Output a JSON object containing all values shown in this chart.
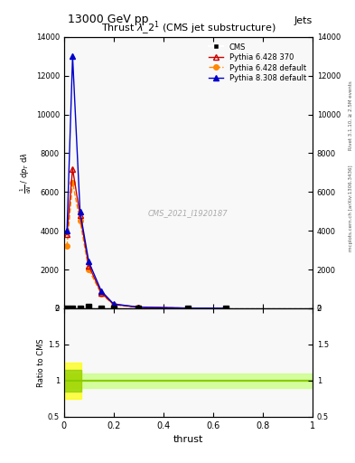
{
  "title": "13000 GeV pp",
  "top_right_label": "Jets",
  "plot_title": "Thrust $\\lambda\\_2^1$ (CMS jet substructure)",
  "watermark": "CMS_2021_I1920187",
  "right_label_top": "Rivet 3.1.10, ≥ 2.5M events",
  "right_label_bottom": "mcplots.cern.ch [arXiv:1306.3436]",
  "xlabel": "thrust",
  "ylabel": "$\\frac{1}{\\mathrm{d}N}$ / $\\mathrm{d}\\sigma$ $\\mathrm{d}p_T$ $\\mathrm{d}\\lambda$",
  "ylabel2": "Ratio to CMS",
  "cms_x": [
    0.0125,
    0.035,
    0.065,
    0.1,
    0.15,
    0.2,
    0.3,
    0.5,
    0.65
  ],
  "cms_y": [
    0,
    0,
    0,
    100,
    0,
    0,
    0,
    0,
    0
  ],
  "cms_color": "black",
  "py6_370_x": [
    0.0125,
    0.035,
    0.065,
    0.1,
    0.15,
    0.2,
    0.3,
    0.5,
    0.65
  ],
  "py6_370_y": [
    3800,
    7200,
    4800,
    2200,
    800,
    200,
    50,
    5,
    2
  ],
  "py6_370_color": "#cc0000",
  "py6_def_x": [
    0.0125,
    0.035,
    0.065,
    0.1,
    0.15,
    0.2,
    0.3,
    0.5,
    0.65
  ],
  "py6_def_y": [
    3200,
    6500,
    4500,
    2000,
    750,
    180,
    45,
    4,
    1.5
  ],
  "py6_def_color": "#ff8800",
  "py8_def_x": [
    0.0125,
    0.035,
    0.065,
    0.1,
    0.15,
    0.2,
    0.3,
    0.5,
    0.65
  ],
  "py8_def_y": [
    4000,
    13000,
    5000,
    2400,
    900,
    220,
    60,
    6,
    2.5
  ],
  "py8_def_color": "#0000cc",
  "ylim_main": [
    0,
    14000
  ],
  "xlim": [
    0,
    1.0
  ],
  "ratio_ylim": [
    0.5,
    2.0
  ],
  "ratio_yticks": [
    0.5,
    1.0,
    1.5,
    2.0
  ],
  "bg_color": "#f8f8f8",
  "grid_color": "#dddddd",
  "ratio_band_color": "#ccff88",
  "ratio_line_color": "#88cc00"
}
